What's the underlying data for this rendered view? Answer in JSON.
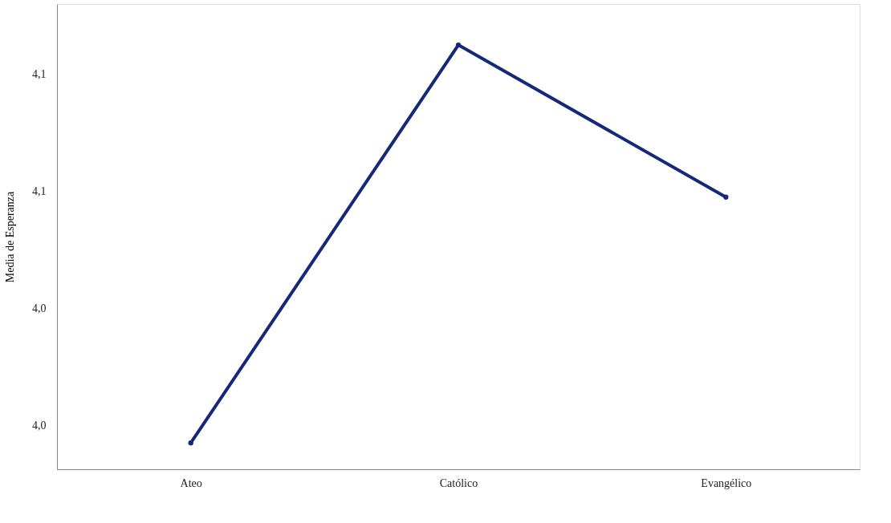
{
  "chart_data": {
    "type": "line",
    "ylabel": "Media de Esperanza",
    "categories": [
      "Ateo",
      "Católico",
      "Evangélico"
    ],
    "series": [
      {
        "color": "#14297a",
        "values": [
          3.994,
          4.13,
          4.078
        ]
      }
    ],
    "ylim": [
      3.985,
      4.144
    ],
    "yticks": [
      {
        "value": 4.0,
        "label": "4,0"
      },
      {
        "value": 4.04,
        "label": "4,0"
      },
      {
        "value": 4.08,
        "label": "4,1"
      },
      {
        "value": 4.12,
        "label": "4,1"
      }
    ],
    "marker": "circle",
    "line_style": "solid",
    "grid": false
  }
}
